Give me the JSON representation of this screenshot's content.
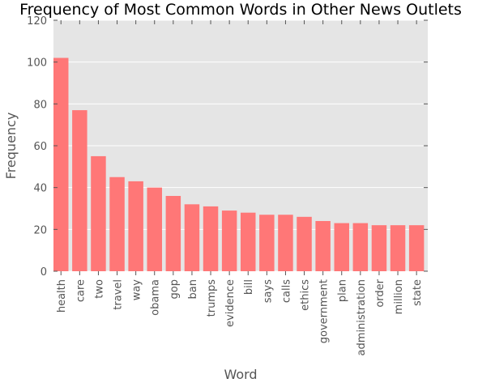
{
  "chart_data": {
    "type": "bar",
    "title": "Frequency of Most Common Words in Other News Outlets",
    "xlabel": "Word",
    "ylabel": "Frequency",
    "ylim": [
      0,
      120
    ],
    "yticks": [
      0,
      20,
      40,
      60,
      80,
      100,
      120
    ],
    "grid": true,
    "categories": [
      "health",
      "care",
      "two",
      "travel",
      "way",
      "obama",
      "gop",
      "ban",
      "trumps",
      "evidence",
      "bill",
      "says",
      "calls",
      "ethics",
      "government",
      "plan",
      "administration",
      "order",
      "million",
      "state"
    ],
    "values": [
      102,
      77,
      55,
      45,
      43,
      40,
      36,
      32,
      31,
      29,
      28,
      27,
      27,
      26,
      24,
      23,
      23,
      22,
      22,
      22
    ],
    "colors": {
      "bar": "#ff7777",
      "plot_bg": "#e5e5e5",
      "grid": "#ffffff",
      "text": "#555555"
    }
  }
}
